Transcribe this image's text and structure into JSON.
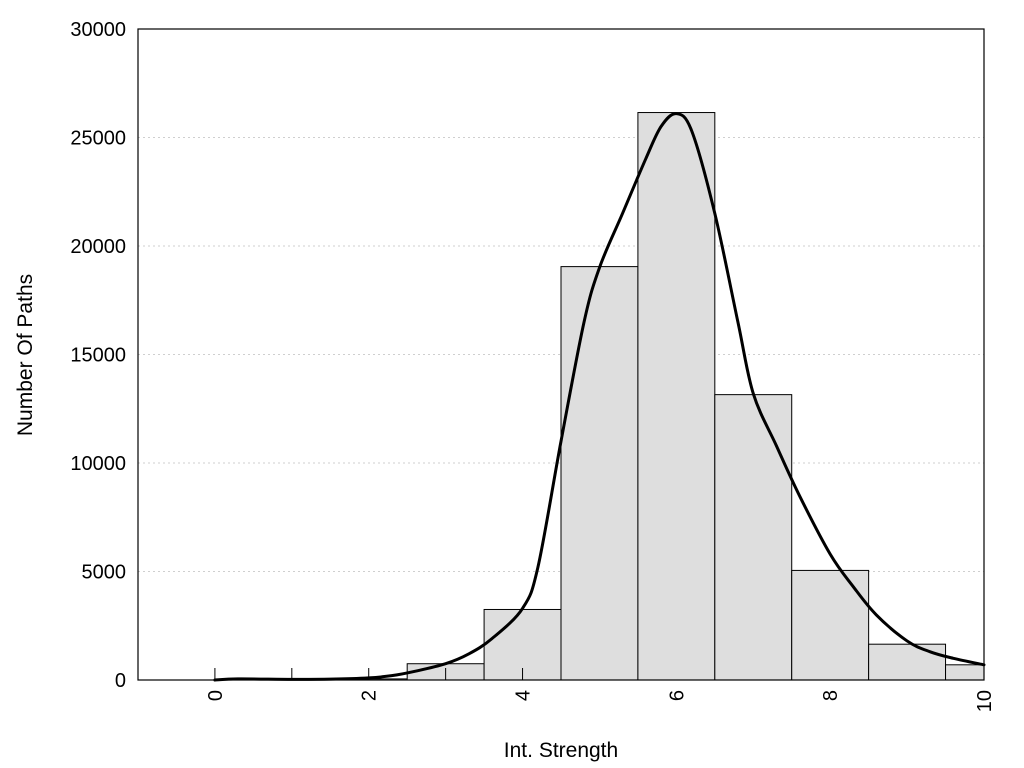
{
  "chart_data": {
    "type": "bar",
    "title": "",
    "xlabel": "Int. Strength",
    "ylabel": "Number Of Paths",
    "xlim": [
      -1,
      10
    ],
    "ylim": [
      0,
      30000
    ],
    "x_ticks": [
      0,
      2,
      4,
      6,
      8,
      10
    ],
    "x_tick_labels": [
      "0",
      "2",
      "4",
      "6",
      "8",
      "10"
    ],
    "x_minor_ticks": [
      0,
      1,
      2,
      3,
      4
    ],
    "y_ticks": [
      0,
      5000,
      10000,
      15000,
      20000,
      25000,
      30000
    ],
    "y_tick_labels": [
      "0",
      "5000",
      "10000",
      "15000",
      "20000",
      "25000",
      "30000"
    ],
    "grid": "horizontal-dotted",
    "bar_color": "#dedede",
    "bars": [
      {
        "x": 0,
        "value": 0
      },
      {
        "x": 1,
        "value": 0
      },
      {
        "x": 2,
        "value": 50
      },
      {
        "x": 3,
        "value": 750
      },
      {
        "x": 4,
        "value": 3250
      },
      {
        "x": 5,
        "value": 19050
      },
      {
        "x": 6,
        "value": 26150
      },
      {
        "x": 7,
        "value": 13150
      },
      {
        "x": 8,
        "value": 5050
      },
      {
        "x": 9,
        "value": 1650
      },
      {
        "x": 10,
        "value": 700
      }
    ],
    "curve": {
      "x": [
        0,
        0.3,
        1,
        1.5,
        2,
        2.3,
        2.6,
        3,
        3.3,
        3.6,
        4,
        4.2,
        4.5,
        4.8,
        5,
        5.3,
        5.6,
        5.8,
        6,
        6.2,
        6.5,
        6.8,
        7,
        7.3,
        7.6,
        8,
        8.3,
        8.6,
        9,
        9.3,
        9.6,
        10
      ],
      "y": [
        0,
        50,
        30,
        40,
        100,
        200,
        400,
        750,
        1200,
        1900,
        3300,
        5200,
        11000,
        16500,
        19000,
        21500,
        24000,
        25500,
        26100,
        25300,
        21500,
        16500,
        13200,
        10800,
        8500,
        5800,
        4300,
        3000,
        1800,
        1300,
        1000,
        700
      ]
    }
  }
}
